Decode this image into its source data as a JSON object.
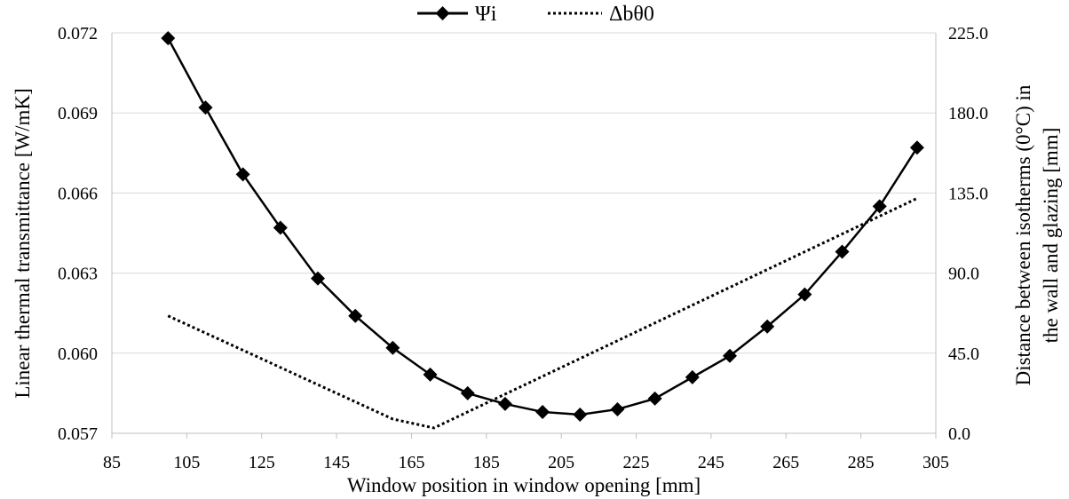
{
  "chart_data": {
    "type": "line",
    "xlabel": "Window position in window opening [mm]",
    "ylabel_left": "Linear thermal transmittance [W/mK]",
    "ylabel_right_line1": "Distance between isotherms (0°C) in",
    "ylabel_right_line2": "the wall and glazing [mm]",
    "x_ticks": [
      "85",
      "105",
      "125",
      "145",
      "165",
      "185",
      "205",
      "225",
      "245",
      "265",
      "285",
      "305"
    ],
    "y_left_ticks": [
      "0.057",
      "0.060",
      "0.063",
      "0.066",
      "0.069",
      "0.072"
    ],
    "y_right_ticks": [
      "0.0",
      "45.0",
      "90.0",
      "135.0",
      "180.0",
      "225.0"
    ],
    "xlim": [
      85,
      305
    ],
    "ylim_left": [
      0.057,
      0.072
    ],
    "ylim_right": [
      0,
      225
    ],
    "grid": "horizontal",
    "legend_position": "top",
    "series": [
      {
        "name": "Ψi",
        "axis": "left",
        "style": "solid-diamond",
        "color": "#000000",
        "x": [
          100,
          110,
          120,
          130,
          140,
          150,
          160,
          170,
          180,
          190,
          200,
          210,
          220,
          230,
          240,
          250,
          260,
          270,
          280,
          290,
          300
        ],
        "values": [
          0.0718,
          0.0692,
          0.0667,
          0.0647,
          0.0628,
          0.0614,
          0.0602,
          0.0592,
          0.0585,
          0.0581,
          0.0578,
          0.0577,
          0.0579,
          0.0583,
          0.0591,
          0.0599,
          0.061,
          0.0622,
          0.0638,
          0.0655,
          0.0677
        ]
      },
      {
        "name": "Δbθ0",
        "axis": "right",
        "style": "dotted",
        "color": "#000000",
        "x": [
          100,
          160,
          171,
          300
        ],
        "values": [
          66,
          8,
          3,
          132
        ]
      }
    ]
  }
}
